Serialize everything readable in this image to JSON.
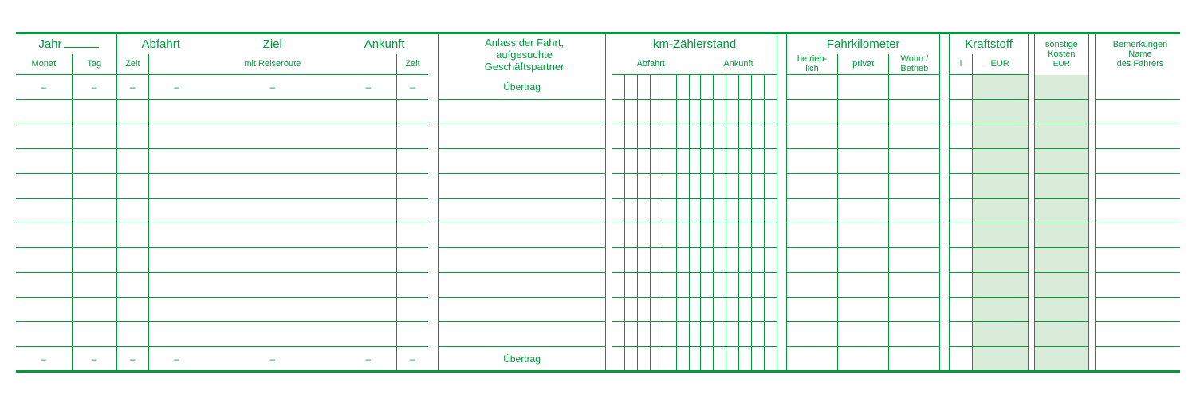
{
  "colors": {
    "line": "#009a3d",
    "shaded": "#d8ecd9",
    "background": "#ffffff"
  },
  "lineWeights": {
    "rule": 3,
    "grid": 1
  },
  "header": {
    "jahr": "Jahr",
    "monat": "Monat",
    "tag": "Tag",
    "abfahrt": "Abfahrt",
    "ziel": "Ziel",
    "ziel_sub": "mit Reiseroute",
    "ankunft": "Ankunft",
    "zeit": "Zeit",
    "anlass1": "Anlass der Fahrt,",
    "anlass2": "aufgesuchte",
    "anlass3": "Geschäftspartner",
    "km": "km-Zählerstand",
    "km_ab": "Abfahrt",
    "km_an": "Ankunft",
    "fahrkm": "Fahrkilometer",
    "fk1": "betrieb-\nlich",
    "fk2": "privat",
    "fk3": "Wohn./\nBetrieb",
    "kraft": "Kraftstoff",
    "kraft_l": "l",
    "kraft_eur": "EUR",
    "sonst1": "sonstige",
    "sonst2": "Kosten",
    "sonst_eur": "EUR",
    "bem1": "Bemerkungen",
    "bem2": "Name",
    "bem3": "des Fahrers"
  },
  "rows": {
    "count": 12,
    "first_label": "Übertrag",
    "last_label": "Übertrag",
    "dash": "–"
  },
  "columnWidths": {
    "monat": 70,
    "tag": 56,
    "zeit_ab": 40,
    "abfahrt_place": 70,
    "ziel": 170,
    "ankunft_place": 70,
    "zeit_an": 40,
    "gap1": 12,
    "anlass": 210,
    "gap2": 8,
    "km_digit": 16,
    "km_gap": 14,
    "gap3": 12,
    "fk": 64,
    "gap4": 12,
    "kraft_l": 28,
    "kraft_eur": 70,
    "gap5": 8,
    "sonst": 68,
    "gap6": 8,
    "bem": 106
  }
}
